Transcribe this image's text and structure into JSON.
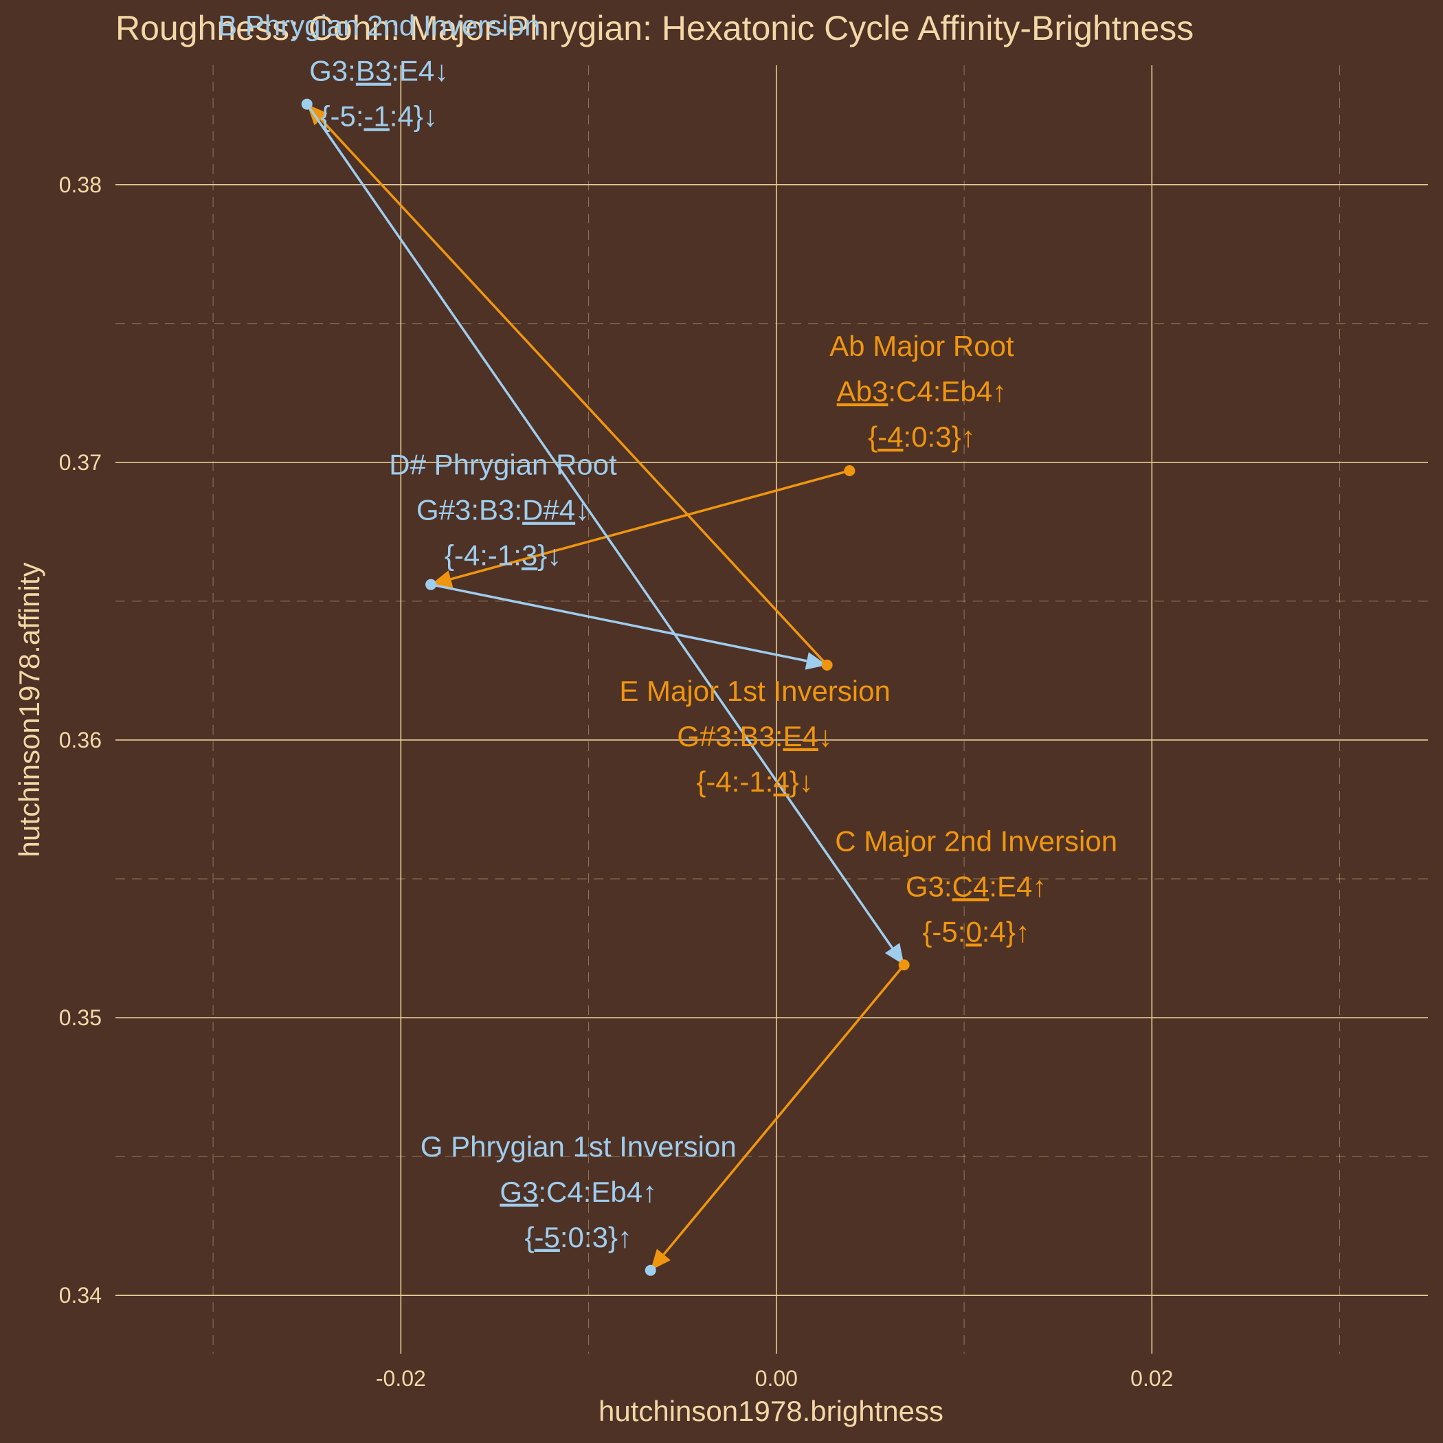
{
  "chart_data": {
    "type": "scatter",
    "title": "Roughness: Cohn: Major-Phrygian: Hexatonic Cycle Affinity-Brightness",
    "xlabel": "hutchinson1978.brightness",
    "ylabel": "hutchinson1978.affinity",
    "xlim": [
      -0.0352,
      0.0347
    ],
    "ylim": [
      0.3379,
      0.3843
    ],
    "x_ticks": [
      -0.02,
      0.0,
      0.02
    ],
    "x_tick_labels": [
      "-0.02",
      "0.00",
      "0.02"
    ],
    "y_ticks": [
      0.34,
      0.35,
      0.36,
      0.37,
      0.38
    ],
    "y_tick_labels": [
      "0.34",
      "0.35",
      "0.36",
      "0.37",
      "0.38"
    ],
    "x_minor": [
      -0.03,
      -0.01,
      0.01,
      0.03
    ],
    "y_minor": [
      0.345,
      0.355,
      0.365,
      0.375
    ],
    "grid": true,
    "legend": "none",
    "colors": {
      "background": "#4e3226",
      "grid": "#e8cf96",
      "text": "#f3d7a6",
      "major": "#f0960e",
      "phrygian": "#9fcdee"
    },
    "points": [
      {
        "x": -0.025,
        "y": 0.3829,
        "group": "phrygian",
        "lines": [
          [
            {
              "t": "B Phrygian 2nd Inversion",
              "u": false
            }
          ],
          [
            {
              "t": "G3:",
              "u": false
            },
            {
              "t": "B3",
              "u": true
            },
            {
              "t": ":E4↓",
              "u": false
            }
          ],
          [
            {
              "t": "{-5:",
              "u": false
            },
            {
              "t": "-1",
              "u": true
            },
            {
              "t": ":4}↓",
              "u": false
            }
          ]
        ]
      },
      {
        "x": 0.0039,
        "y": 0.3697,
        "group": "major",
        "lines": [
          [
            {
              "t": "Ab Major Root",
              "u": false
            }
          ],
          [
            {
              "t": "Ab3",
              "u": true
            },
            {
              "t": ":C4:Eb4↑",
              "u": false
            }
          ],
          [
            {
              "t": "{",
              "u": false
            },
            {
              "t": "-4",
              "u": true
            },
            {
              "t": ":0:3}↑",
              "u": false
            }
          ]
        ]
      },
      {
        "x": -0.0184,
        "y": 0.3656,
        "group": "phrygian",
        "lines": [
          [
            {
              "t": "D# Phrygian Root",
              "u": false
            }
          ],
          [
            {
              "t": "G#3:B3:",
              "u": false
            },
            {
              "t": "D#4",
              "u": true
            },
            {
              "t": "↓",
              "u": false
            }
          ],
          [
            {
              "t": "{-4:-1:",
              "u": false
            },
            {
              "t": "3",
              "u": true
            },
            {
              "t": "}↓",
              "u": false
            }
          ]
        ]
      },
      {
        "x": 0.0027,
        "y": 0.3627,
        "group": "major",
        "lines": [
          [
            {
              "t": "E Major 1st Inversion",
              "u": false
            }
          ],
          [
            {
              "t": "G#3:B3:",
              "u": false
            },
            {
              "t": "E4",
              "u": true
            },
            {
              "t": "↓",
              "u": false
            }
          ],
          [
            {
              "t": "{-4:-1:",
              "u": false
            },
            {
              "t": "4",
              "u": true
            },
            {
              "t": "}↓",
              "u": false
            }
          ]
        ]
      },
      {
        "x": 0.0068,
        "y": 0.3519,
        "group": "major",
        "lines": [
          [
            {
              "t": "C Major 2nd Inversion",
              "u": false
            }
          ],
          [
            {
              "t": "G3:",
              "u": false
            },
            {
              "t": "C4",
              "u": true
            },
            {
              "t": ":E4↑",
              "u": false
            }
          ],
          [
            {
              "t": "{-5:",
              "u": false
            },
            {
              "t": "0",
              "u": true
            },
            {
              "t": ":4}↑",
              "u": false
            }
          ]
        ]
      },
      {
        "x": -0.0067,
        "y": 0.3409,
        "group": "phrygian",
        "lines": [
          [
            {
              "t": "G Phrygian 1st Inversion",
              "u": false
            }
          ],
          [
            {
              "t": "G3",
              "u": true
            },
            {
              "t": ":C4:Eb4↑",
              "u": false
            }
          ],
          [
            {
              "t": "{",
              "u": false
            },
            {
              "t": "-5",
              "u": true
            },
            {
              "t": ":0:3}↑",
              "u": false
            }
          ]
        ]
      }
    ],
    "arrows": [
      {
        "from": 1,
        "to": 2,
        "group": "major"
      },
      {
        "from": 2,
        "to": 3,
        "group": "phrygian"
      },
      {
        "from": 3,
        "to": 0,
        "group": "major"
      },
      {
        "from": 0,
        "to": 4,
        "group": "phrygian"
      },
      {
        "from": 4,
        "to": 5,
        "group": "major"
      }
    ]
  }
}
